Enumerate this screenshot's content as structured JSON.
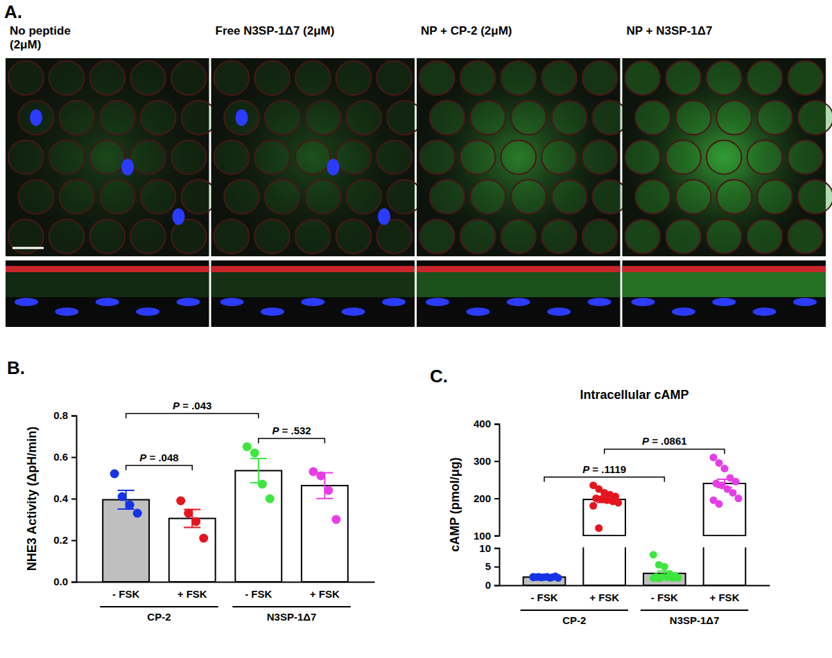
{
  "chart_data": [
    {
      "type": "image",
      "panel": "A.",
      "columns": [
        [
          "No peptide",
          "(2μM)"
        ],
        [
          "Free N3SP-1Δ7 (2μM)"
        ],
        [
          "NP + CP-2 (2μM)"
        ],
        [
          "NP + N3SP-1Δ7"
        ]
      ]
    },
    {
      "type": "bar",
      "panel": "B.",
      "ylabel": "NHE3 Activity (ΔpH/min)",
      "categories": [
        "- FSK",
        "+ FSK",
        "- FSK",
        "+ FSK"
      ],
      "groups": [
        "CP-2",
        "N3SP-1Δ7"
      ],
      "values": [
        0.395,
        0.305,
        0.535,
        0.463
      ],
      "errors": [
        0.045,
        0.043,
        0.058,
        0.062
      ],
      "points": [
        [
          0.52,
          0.41,
          0.37,
          0.33
        ],
        [
          0.39,
          0.33,
          0.29,
          0.21
        ],
        [
          0.65,
          0.62,
          0.47,
          0.4
        ],
        [
          0.53,
          0.51,
          0.44,
          0.3
        ]
      ],
      "colors": [
        "#1432e6",
        "#e6141e",
        "#3ee63e",
        "#e63ee6"
      ],
      "ylim": [
        0,
        0.8
      ],
      "yticks": [
        {
          "value": 0,
          "label": "0.0"
        },
        {
          "value": 0.2,
          "label": "0.2"
        },
        {
          "value": 0.4,
          "label": "0.4"
        },
        {
          "value": 0.6,
          "label": "0.6"
        },
        {
          "value": 0.8,
          "label": "0.8"
        }
      ],
      "comparisons": [
        {
          "pair": [
            0,
            1
          ],
          "label": "P = .048"
        },
        {
          "pair": [
            2,
            3
          ],
          "label": "P = .532"
        },
        {
          "pair": [
            0,
            2
          ],
          "label": "P = .043"
        }
      ]
    },
    {
      "type": "bar",
      "panel": "C.",
      "title": "Intracellular cAMP",
      "ylabel": "cAMP (pmol/μg)",
      "categories": [
        "- FSK",
        "+ FSK",
        "- FSK",
        "+ FSK"
      ],
      "groups": [
        "CP-2",
        "N3SP-1Δ7"
      ],
      "values": [
        2.2,
        197,
        3.2,
        240
      ],
      "errors": [
        0.05,
        8,
        0.6,
        11
      ],
      "points": [
        [
          2.1,
          2.3,
          2.2,
          2.0,
          2.4,
          2.2,
          2.1,
          2.3,
          2.2,
          2.0,
          2.3,
          2.2
        ],
        [
          235,
          225,
          215,
          210,
          205,
          200,
          198,
          195,
          192,
          188,
          180,
          120
        ],
        [
          8.2,
          5.5,
          5.0,
          3.0,
          2.5,
          2.3,
          2.2,
          2.1,
          2.0,
          2.0,
          1.9,
          1.8
        ],
        [
          310,
          295,
          280,
          255,
          245,
          240,
          235,
          225,
          215,
          200,
          195,
          185
        ]
      ],
      "colors": [
        "#1432e6",
        "#e6141e",
        "#3ee63e",
        "#e63ee6"
      ],
      "segments": [
        {
          "ylim": [
            0,
            10
          ],
          "yticks": [
            0,
            5,
            10
          ]
        },
        {
          "ylim": [
            100,
            400
          ],
          "yticks": [
            100,
            200,
            300,
            400
          ]
        }
      ],
      "comparisons": [
        {
          "pair": [
            0,
            2
          ],
          "label": "P = .1119"
        },
        {
          "pair": [
            1,
            3
          ],
          "label": "P = .0861"
        }
      ]
    }
  ]
}
